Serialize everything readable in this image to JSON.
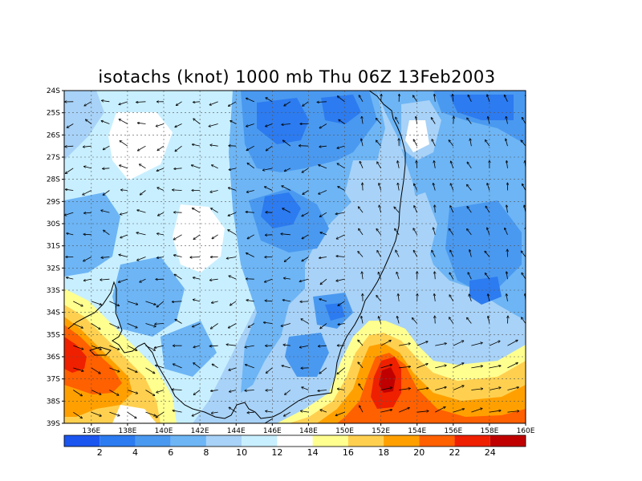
{
  "title": "isotachs (knot) 1000 mb Thu 06Z 13Feb2003",
  "chart_data": {
    "type": "heatmap",
    "variable": "isotachs (knot)",
    "level": "1000 mb",
    "time": "Thu 06Z 13Feb2003",
    "lon_range": [
      134.5,
      160
    ],
    "lat_range": [
      -39,
      -24
    ],
    "x_tick_labels": [
      "136E",
      "138E",
      "140E",
      "142E",
      "144E",
      "146E",
      "148E",
      "150E",
      "152E",
      "154E",
      "156E",
      "158E",
      "160E"
    ],
    "x_tick_values": [
      136,
      138,
      140,
      142,
      144,
      146,
      148,
      150,
      152,
      154,
      156,
      158,
      160
    ],
    "y_tick_labels": [
      "24S",
      "25S",
      "26S",
      "27S",
      "28S",
      "29S",
      "30S",
      "31S",
      "32S",
      "33S",
      "34S",
      "35S",
      "36S",
      "37S",
      "38S",
      "39S"
    ],
    "y_tick_values": [
      -24,
      -25,
      -26,
      -27,
      -28,
      -29,
      -30,
      -31,
      -32,
      -33,
      -34,
      -35,
      -36,
      -37,
      -38,
      -39
    ],
    "grid": "dotted",
    "colorbar": {
      "levels": [
        2,
        4,
        6,
        8,
        10,
        12,
        14,
        16,
        18,
        20,
        22,
        24
      ],
      "labels": [
        "2",
        "4",
        "6",
        "8",
        "10",
        "12",
        "14",
        "16",
        "18",
        "20",
        "22",
        "24"
      ],
      "colors": [
        "#1a55f0",
        "#2c7bf0",
        "#4a99f0",
        "#6db5f5",
        "#a8d2f7",
        "#c8efff",
        "#ffffff",
        "#ffff90",
        "#ffd050",
        "#ffa000",
        "#ff6000",
        "#ee2000",
        "#c00000"
      ],
      "placement": "bottom"
    },
    "wind_vectors": "present"
  }
}
